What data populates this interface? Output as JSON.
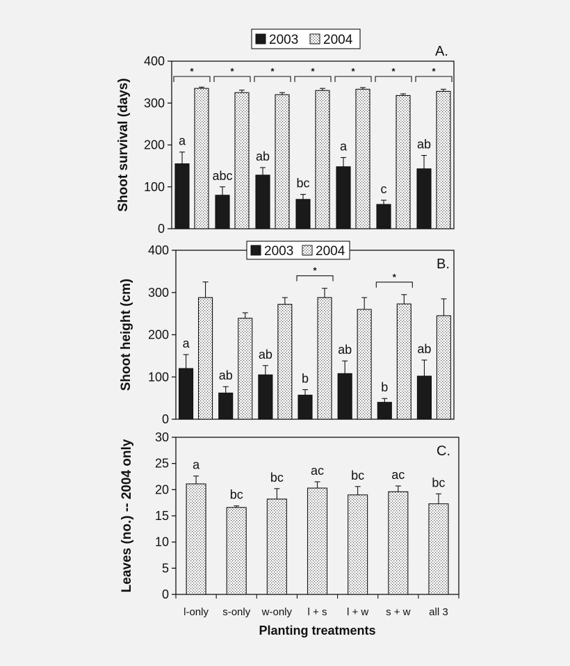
{
  "chart_data": [
    {
      "type": "bar",
      "panel_label": "A.",
      "ylabel": "Shoot survival (days)",
      "ylim": [
        0,
        400
      ],
      "yticks": [
        0,
        100,
        200,
        300,
        400
      ],
      "categories": [
        "l-only",
        "s-only",
        "w-only",
        "l + s",
        "l + w",
        "s + w",
        "all 3"
      ],
      "legend": {
        "position": "top-center",
        "entries": [
          "2003",
          "2004"
        ]
      },
      "series": [
        {
          "name": "2003",
          "color": "#1a1a1a",
          "pattern": "solid",
          "values": [
            155,
            80,
            128,
            70,
            148,
            58,
            143
          ],
          "errors": [
            28,
            20,
            18,
            12,
            22,
            10,
            32
          ]
        },
        {
          "name": "2004",
          "color": "#ffffff",
          "pattern": "dotted",
          "values": [
            335,
            325,
            320,
            330,
            333,
            318,
            328
          ],
          "errors": [
            3,
            6,
            5,
            5,
            4,
            4,
            5
          ]
        }
      ],
      "letters": [
        "a",
        "abc",
        "ab",
        "bc",
        "a",
        "c",
        "ab"
      ],
      "significance_groups": [
        0,
        1,
        2,
        3,
        4,
        5,
        6
      ],
      "significance_symbol": "*"
    },
    {
      "type": "bar",
      "panel_label": "B.",
      "ylabel": "Shoot height (cm)",
      "ylim": [
        0,
        400
      ],
      "yticks": [
        0,
        100,
        200,
        300,
        400
      ],
      "categories": [
        "l-only",
        "s-only",
        "w-only",
        "l + s",
        "l + w",
        "s + w",
        "all 3"
      ],
      "legend": {
        "position": "top-center",
        "entries": [
          "2003",
          "2004"
        ]
      },
      "series": [
        {
          "name": "2003",
          "color": "#1a1a1a",
          "pattern": "solid",
          "values": [
            120,
            62,
            105,
            57,
            108,
            40,
            102
          ],
          "errors": [
            33,
            15,
            22,
            13,
            30,
            9,
            38
          ]
        },
        {
          "name": "2004",
          "color": "#ffffff",
          "pattern": "dotted",
          "values": [
            288,
            239,
            272,
            288,
            260,
            273,
            245
          ],
          "errors": [
            37,
            13,
            16,
            22,
            28,
            22,
            40
          ]
        }
      ],
      "letters": [
        "a",
        "ab",
        "ab",
        "b",
        "ab",
        "b",
        "ab"
      ],
      "significance_groups": [
        3,
        5
      ],
      "significance_symbol": "*"
    },
    {
      "type": "bar",
      "panel_label": "C.",
      "ylabel": "Leaves (no.) -- 2004 only",
      "xlabel": "Planting treatments",
      "ylim": [
        0,
        30
      ],
      "yticks": [
        0,
        5,
        10,
        15,
        20,
        25,
        30
      ],
      "categories": [
        "l-only",
        "s-only",
        "w-only",
        "l + s",
        "l + w",
        "s + w",
        "all 3"
      ],
      "series": [
        {
          "name": "2004",
          "color": "#ffffff",
          "pattern": "dotted",
          "values": [
            21.1,
            16.6,
            18.2,
            20.3,
            19.0,
            19.6,
            17.3
          ],
          "errors": [
            1.5,
            0.3,
            2.0,
            1.2,
            1.6,
            1.1,
            1.9
          ]
        }
      ],
      "letters": [
        "a",
        "bc",
        "bc",
        "ac",
        "bc",
        "ac",
        "bc"
      ]
    }
  ]
}
